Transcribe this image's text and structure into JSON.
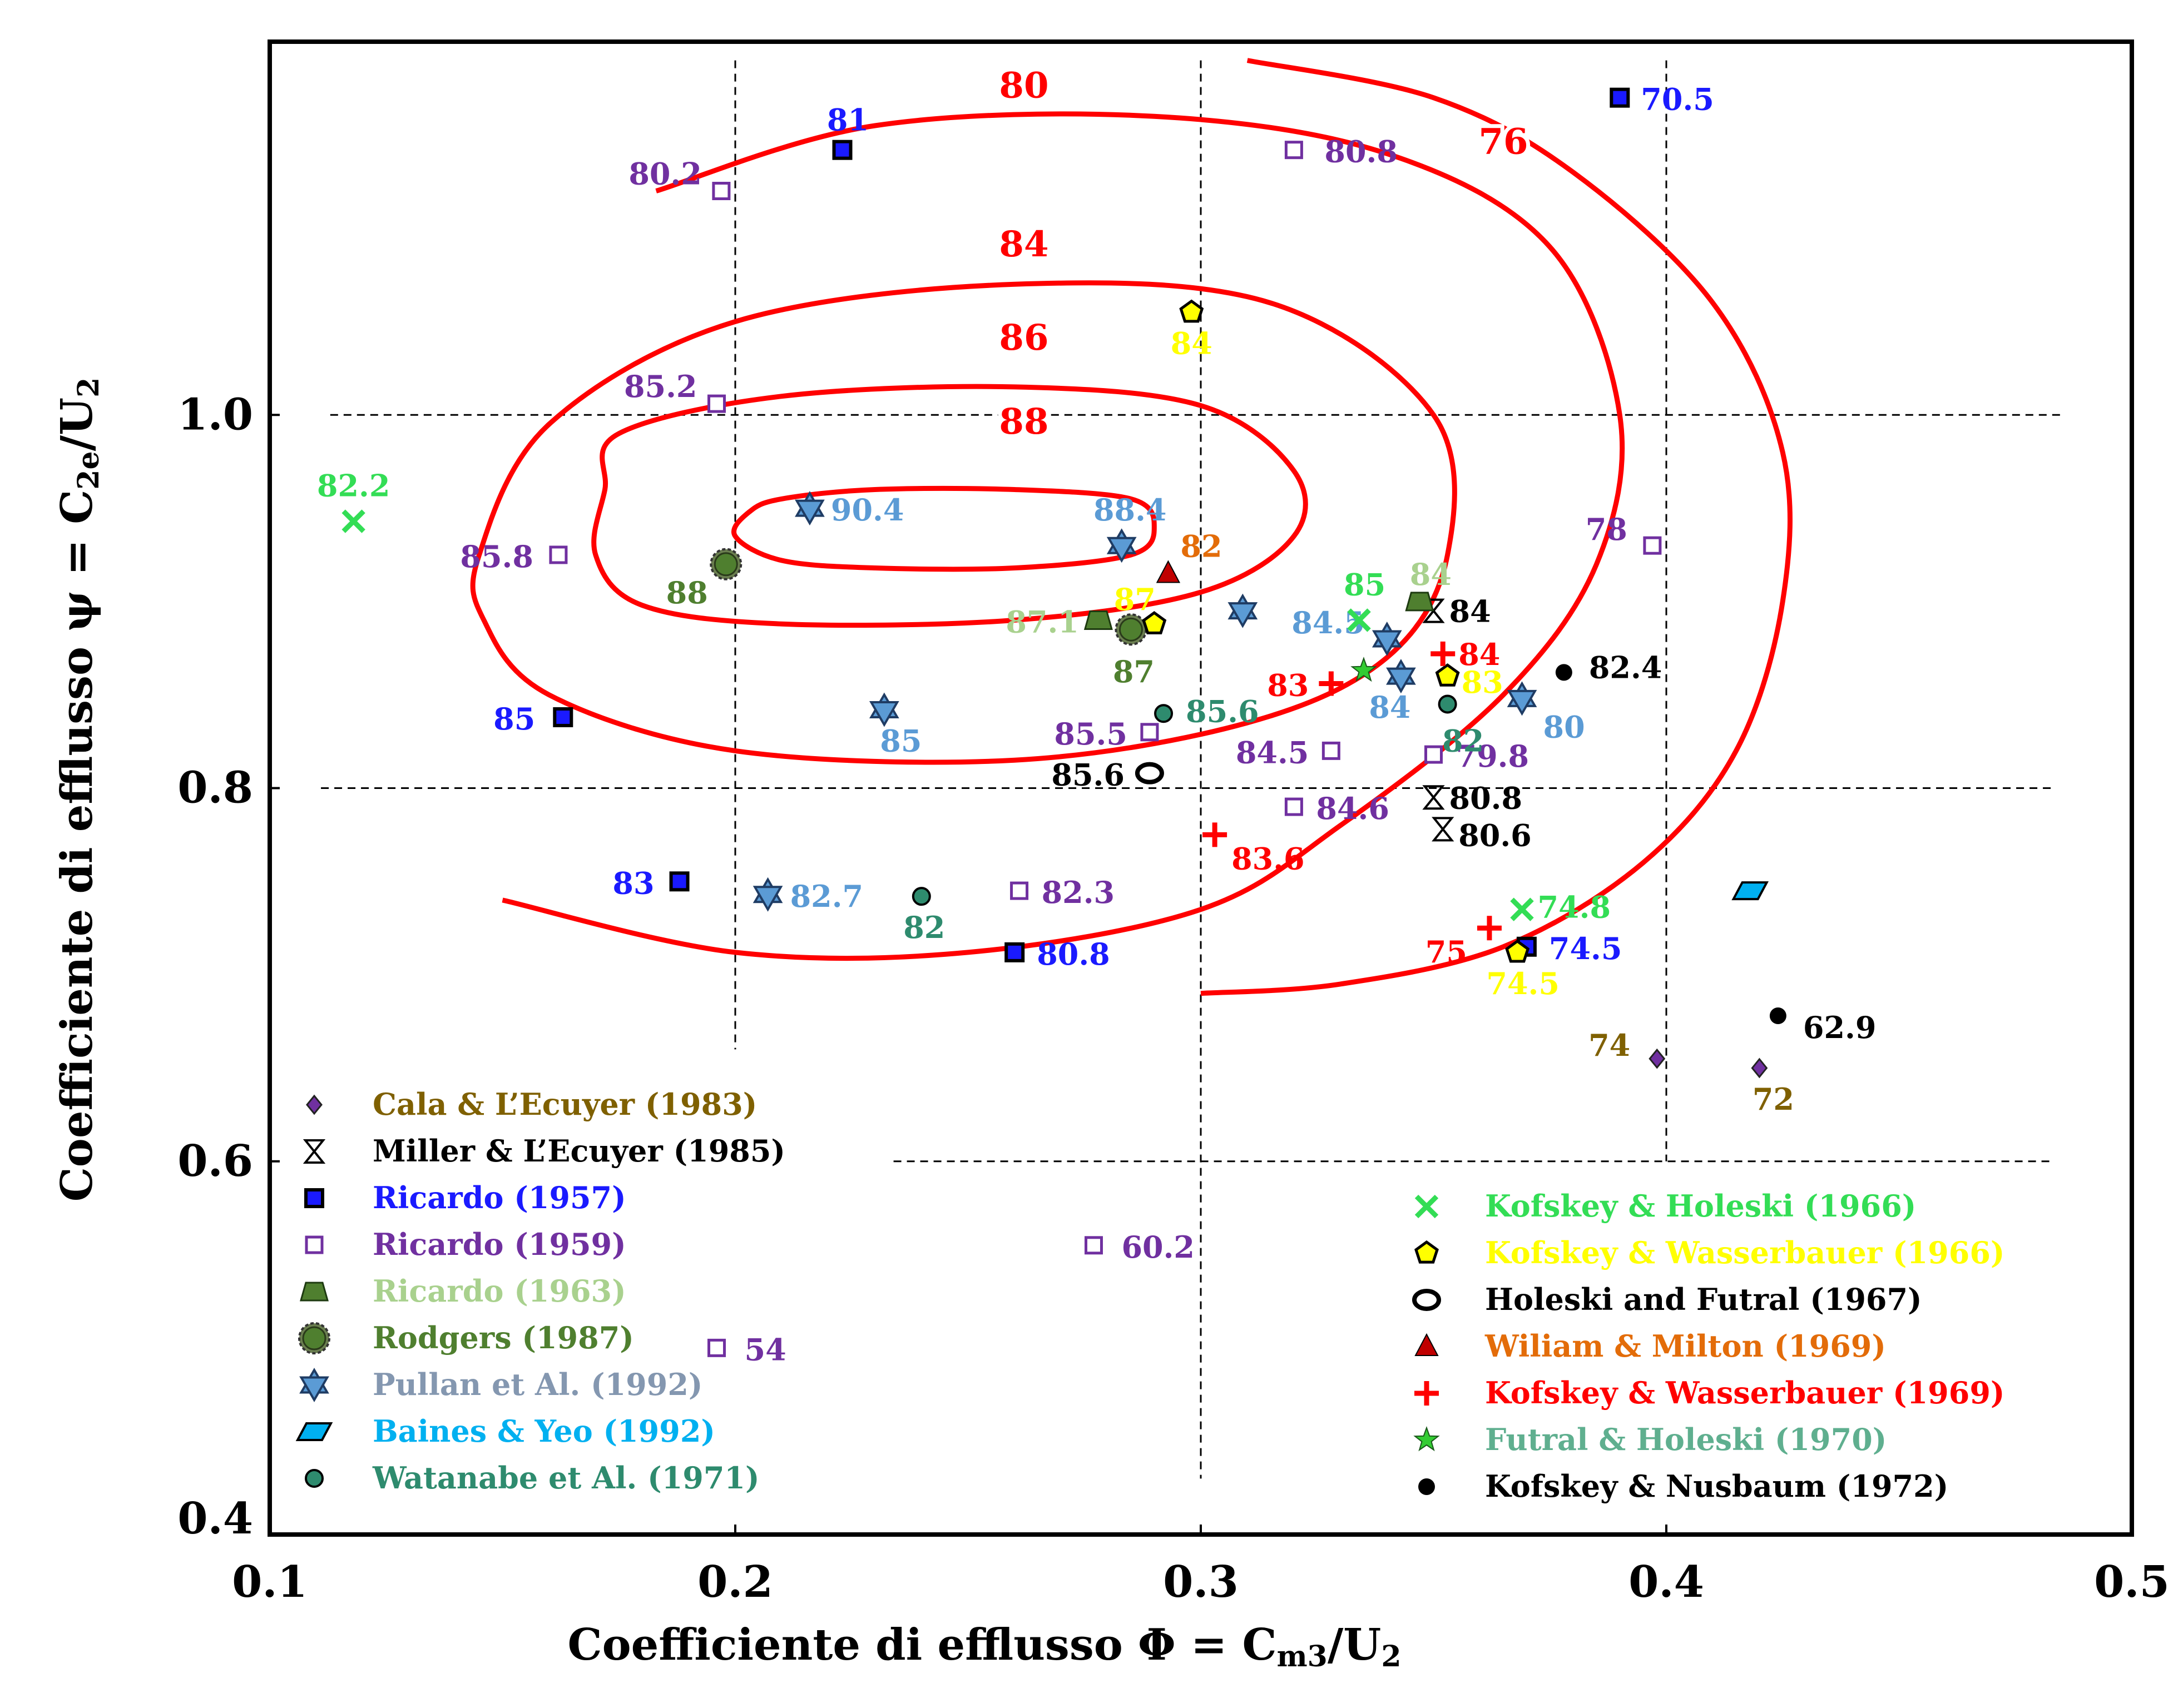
{
  "chart_data": {
    "type": "scatter",
    "xlabel": "Coefficiente di efflusso Φ = C",
    "xlabel_sub": "m3",
    "xlabel_tail": "/U",
    "xlabel_sub2": "2",
    "ylabel": "Coefficiente di efflusso ψ = C",
    "ylabel_sub": "2e",
    "ylabel_tail": "/U",
    "ylabel_sub2": "2",
    "xlim": [
      0.1,
      0.5
    ],
    "ylim": [
      0.4,
      1.2
    ],
    "x_ticks": [
      {
        "value": 0.1,
        "label": "0.1"
      },
      {
        "value": 0.2,
        "label": "0.2"
      },
      {
        "value": 0.3,
        "label": "0.3"
      },
      {
        "value": 0.4,
        "label": "0.4"
      },
      {
        "value": 0.5,
        "label": "0.5"
      }
    ],
    "y_ticks": [
      {
        "value": 0.4,
        "label": "0.4"
      },
      {
        "value": 0.6,
        "label": "0.6"
      },
      {
        "value": 0.8,
        "label": "0.8"
      },
      {
        "value": 1.0,
        "label": "1.0"
      }
    ],
    "contours": [
      {
        "label": "88",
        "label_at": [
          0.262,
          0.99
        ],
        "points": [
          [
            0.21,
            0.955
          ],
          [
            0.23,
            0.96
          ],
          [
            0.26,
            0.96
          ],
          [
            0.285,
            0.955
          ],
          [
            0.29,
            0.94
          ],
          [
            0.285,
            0.925
          ],
          [
            0.26,
            0.918
          ],
          [
            0.23,
            0.918
          ],
          [
            0.21,
            0.922
          ],
          [
            0.2,
            0.935
          ],
          [
            0.203,
            0.948
          ],
          [
            0.21,
            0.955
          ]
        ],
        "closed": true
      },
      {
        "label": "86",
        "label_at": [
          0.262,
          1.035
        ],
        "points": [
          [
            0.175,
            0.99
          ],
          [
            0.21,
            1.01
          ],
          [
            0.26,
            1.015
          ],
          [
            0.3,
            1.005
          ],
          [
            0.32,
            0.97
          ],
          [
            0.32,
            0.935
          ],
          [
            0.3,
            0.905
          ],
          [
            0.26,
            0.89
          ],
          [
            0.21,
            0.888
          ],
          [
            0.18,
            0.898
          ],
          [
            0.17,
            0.925
          ],
          [
            0.172,
            0.96
          ],
          [
            0.175,
            0.99
          ]
        ],
        "closed": true
      },
      {
        "label": "84",
        "label_at": [
          0.262,
          1.085
        ],
        "points": [
          [
            0.145,
            0.925
          ],
          [
            0.16,
            0.995
          ],
          [
            0.2,
            1.05
          ],
          [
            0.26,
            1.07
          ],
          [
            0.315,
            1.06
          ],
          [
            0.35,
            1.0
          ],
          [
            0.353,
            0.925
          ],
          [
            0.34,
            0.87
          ],
          [
            0.31,
            0.835
          ],
          [
            0.26,
            0.815
          ],
          [
            0.2,
            0.82
          ],
          [
            0.16,
            0.85
          ],
          [
            0.146,
            0.89
          ],
          [
            0.145,
            0.925
          ]
        ],
        "closed": true
      },
      {
        "label": "80",
        "label_at": [
          0.262,
          1.17
        ],
        "points": [
          [
            0.183,
            1.12
          ],
          [
            0.23,
            1.155
          ],
          [
            0.29,
            1.16
          ],
          [
            0.34,
            1.14
          ],
          [
            0.375,
            1.09
          ],
          [
            0.39,
            1.0
          ],
          [
            0.385,
            0.92
          ],
          [
            0.365,
            0.85
          ],
          [
            0.33,
            0.78
          ],
          [
            0.3,
            0.735
          ],
          [
            0.25,
            0.712
          ],
          [
            0.2,
            0.712
          ],
          [
            0.15,
            0.74
          ]
        ],
        "closed": false
      },
      {
        "label": "76",
        "label_at": [
          0.365,
          1.14
        ],
        "points": [
          [
            0.31,
            1.19
          ],
          [
            0.35,
            1.17
          ],
          [
            0.38,
            1.13
          ],
          [
            0.41,
            1.06
          ],
          [
            0.425,
            0.98
          ],
          [
            0.425,
            0.9
          ],
          [
            0.415,
            0.82
          ],
          [
            0.395,
            0.76
          ],
          [
            0.365,
            0.715
          ],
          [
            0.33,
            0.695
          ],
          [
            0.3,
            0.69
          ]
        ],
        "closed": false
      }
    ],
    "series": [
      {
        "name": "Cala & L’Ecuyer (1983)",
        "marker": "diamond",
        "color": "#7030A0",
        "label_color": "#7F6000",
        "points": [
          {
            "x": 0.398,
            "y": 0.655,
            "label": "74"
          },
          {
            "x": 0.42,
            "y": 0.65,
            "label": "72"
          }
        ]
      },
      {
        "name": "Miller & L’Ecuyer (1985)",
        "marker": "hourglass",
        "color": "#000000",
        "label_color": "#000000",
        "points": [
          {
            "x": 0.35,
            "y": 0.895,
            "label": "84"
          },
          {
            "x": 0.35,
            "y": 0.795,
            "label": "80.8"
          },
          {
            "x": 0.352,
            "y": 0.778,
            "label": "80.6"
          }
        ]
      },
      {
        "name": "Ricardo (1957)",
        "marker": "square-filled",
        "color": "#1a1aff",
        "label_color": "#1a1aff",
        "points": [
          {
            "x": 0.223,
            "y": 1.142,
            "label": "81"
          },
          {
            "x": 0.39,
            "y": 1.17,
            "label": "70.5"
          },
          {
            "x": 0.163,
            "y": 0.838,
            "label": "85"
          },
          {
            "x": 0.188,
            "y": 0.75,
            "label": "83"
          },
          {
            "x": 0.26,
            "y": 0.712,
            "label": "80.8"
          },
          {
            "x": 0.37,
            "y": 0.715,
            "label": "74.5"
          }
        ]
      },
      {
        "name": "Ricardo (1959)",
        "marker": "square-open",
        "color": "#7030A0",
        "label_color": "#7030A0",
        "points": [
          {
            "x": 0.197,
            "y": 1.12,
            "label": "80.2"
          },
          {
            "x": 0.32,
            "y": 1.142,
            "label": "80.8"
          },
          {
            "x": 0.196,
            "y": 1.006,
            "label": "85.2"
          },
          {
            "x": 0.162,
            "y": 0.925,
            "label": "85.8"
          },
          {
            "x": 0.397,
            "y": 0.93,
            "label": "78"
          },
          {
            "x": 0.289,
            "y": 0.83,
            "label": "85.5"
          },
          {
            "x": 0.328,
            "y": 0.82,
            "label": "84.5"
          },
          {
            "x": 0.35,
            "y": 0.818,
            "label": "79.8"
          },
          {
            "x": 0.32,
            "y": 0.79,
            "label": "84.6"
          },
          {
            "x": 0.261,
            "y": 0.745,
            "label": "82.3"
          },
          {
            "x": 0.277,
            "y": 0.555,
            "label": "60.2"
          },
          {
            "x": 0.196,
            "y": 0.5,
            "label": "54"
          }
        ]
      },
      {
        "name": "Ricardo (1963)",
        "marker": "trapezoid",
        "color": "#4F7F2F",
        "label_color": "#A9D18E",
        "points": [
          {
            "x": 0.278,
            "y": 0.89,
            "label": "87.1"
          },
          {
            "x": 0.347,
            "y": 0.9,
            "label": "84"
          }
        ]
      },
      {
        "name": "Rodgers (1987)",
        "marker": "gear-circle",
        "color": "#4F7F2F",
        "label_color": "#4F7F2F",
        "points": [
          {
            "x": 0.198,
            "y": 0.92,
            "label": "88"
          },
          {
            "x": 0.285,
            "y": 0.885,
            "label": "87"
          }
        ]
      },
      {
        "name": "Pullan et Al. (1992)",
        "marker": "star6",
        "color": "#5B9BD5",
        "label_color": "#5B9BD5",
        "points": [
          {
            "x": 0.216,
            "y": 0.95,
            "label": "90.4"
          },
          {
            "x": 0.283,
            "y": 0.93,
            "label": "88.4"
          },
          {
            "x": 0.309,
            "y": 0.895,
            "label": ""
          },
          {
            "x": 0.232,
            "y": 0.842,
            "label": "85"
          },
          {
            "x": 0.34,
            "y": 0.88,
            "label": "84.5"
          },
          {
            "x": 0.343,
            "y": 0.86,
            "label": "84"
          },
          {
            "x": 0.369,
            "y": 0.848,
            "label": "80"
          },
          {
            "x": 0.207,
            "y": 0.743,
            "label": "82.7"
          }
        ]
      },
      {
        "name": "Baines & Yeo (1992)",
        "marker": "parallelogram",
        "color": "#00B0F0",
        "label_color": "#00B0F0",
        "points": [
          {
            "x": 0.418,
            "y": 0.745,
            "label": ""
          }
        ]
      },
      {
        "name": "Watanabe et Al. (1971)",
        "marker": "circle-small",
        "color": "#2E8B6E",
        "label_color": "#2E8B6E",
        "points": [
          {
            "x": 0.292,
            "y": 0.84,
            "label": "85.6"
          },
          {
            "x": 0.353,
            "y": 0.845,
            "label": "82"
          },
          {
            "x": 0.24,
            "y": 0.742,
            "label": "82"
          }
        ]
      },
      {
        "name": "Kofskey & Holeski (1966)",
        "marker": "x",
        "color": "#33DD55",
        "label_color": "#33DD55",
        "points": [
          {
            "x": 0.118,
            "y": 0.943,
            "label": "82.2"
          },
          {
            "x": 0.334,
            "y": 0.89,
            "label": "85"
          },
          {
            "x": 0.369,
            "y": 0.735,
            "label": "74.8"
          }
        ]
      },
      {
        "name": "Kofskey & Wasserbauer (1966)",
        "marker": "pentagon",
        "color": "#FFFF00",
        "label_color": "#FFFF00",
        "points": [
          {
            "x": 0.298,
            "y": 1.055,
            "label": "84"
          },
          {
            "x": 0.29,
            "y": 0.888,
            "label": "87"
          },
          {
            "x": 0.353,
            "y": 0.86,
            "label": "83"
          },
          {
            "x": 0.368,
            "y": 0.712,
            "label": "74.5"
          }
        ]
      },
      {
        "name": "Holeski and Futral (1967)",
        "marker": "ring",
        "color": "#000000",
        "label_color": "#000000",
        "points": [
          {
            "x": 0.289,
            "y": 0.808,
            "label": "85.6"
          }
        ]
      },
      {
        "name": "Wiliam & Milton (1969)",
        "marker": "triangle",
        "color": "#C00000",
        "label_color": "#E36C09",
        "points": [
          {
            "x": 0.293,
            "y": 0.915,
            "label": "82"
          }
        ]
      },
      {
        "name": "Kofskey & Wasserbauer (1969)",
        "marker": "plus",
        "color": "#FF0000",
        "label_color": "#FF0000",
        "points": [
          {
            "x": 0.352,
            "y": 0.872,
            "label": "84"
          },
          {
            "x": 0.328,
            "y": 0.856,
            "label": "83"
          },
          {
            "x": 0.303,
            "y": 0.775,
            "label": "83.6"
          },
          {
            "x": 0.362,
            "y": 0.725,
            "label": "75"
          }
        ]
      },
      {
        "name": "Futral & Holeski (1970)",
        "marker": "star5",
        "color": "#33CC33",
        "label_color": "#5FAF8F",
        "points": [
          {
            "x": 0.335,
            "y": 0.863,
            "label": ""
          }
        ]
      },
      {
        "name": "Kofskey & Nusbaum (1972)",
        "marker": "dot",
        "color": "#000000",
        "label_color": "#000000",
        "points": [
          {
            "x": 0.378,
            "y": 0.862,
            "label": "82.4"
          },
          {
            "x": 0.424,
            "y": 0.678,
            "label": "62.9"
          }
        ]
      }
    ],
    "legend": {
      "left_count": 9,
      "right_count": 7
    }
  }
}
